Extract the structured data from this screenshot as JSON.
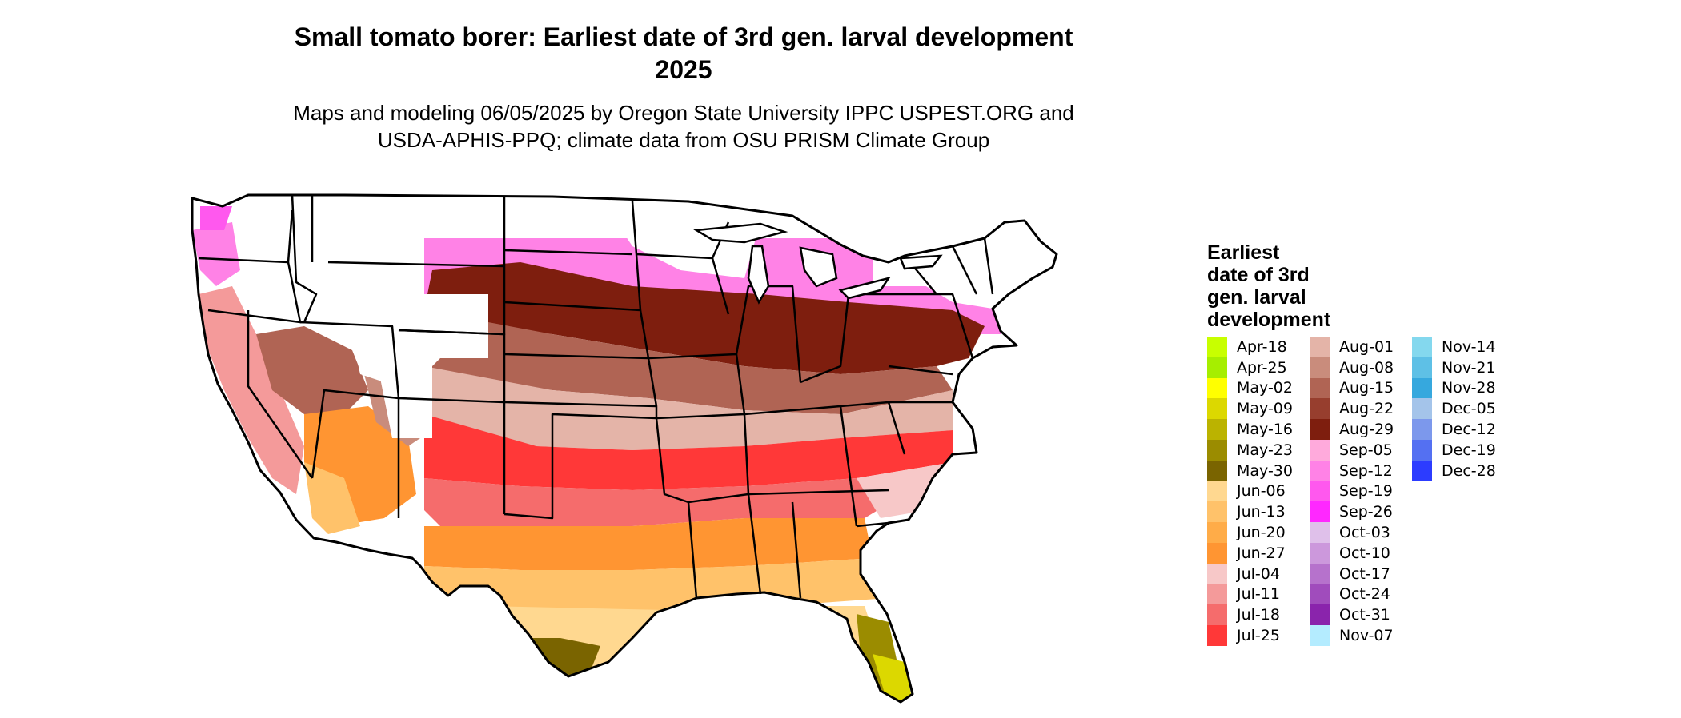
{
  "title_line1": "Small tomato borer: Earliest date of 3rd gen. larval development",
  "title_line2": "2025",
  "subtitle_line1": "Maps and modeling 06/05/2025 by Oregon State University IPPC USPEST.ORG and",
  "subtitle_line2": "USDA-APHIS-PPQ; climate data from OSU PRISM Climate Group",
  "legend": {
    "title_lines": [
      "Earliest",
      "date of 3rd",
      "gen. larval",
      "development"
    ],
    "columns": [
      [
        {
          "label": "Apr-18",
          "color": "#c8ff00"
        },
        {
          "label": "Apr-25",
          "color": "#a6ee00"
        },
        {
          "label": "May-02",
          "color": "#ffff00"
        },
        {
          "label": "May-09",
          "color": "#dcd800"
        },
        {
          "label": "May-16",
          "color": "#bbb300"
        },
        {
          "label": "May-23",
          "color": "#9b8c00"
        },
        {
          "label": "May-30",
          "color": "#7a6400"
        },
        {
          "label": "Jun-06",
          "color": "#ffd890"
        },
        {
          "label": "Jun-13",
          "color": "#ffc26a"
        },
        {
          "label": "Jun-20",
          "color": "#ffac48"
        },
        {
          "label": "Jun-27",
          "color": "#ff9532"
        },
        {
          "label": "Jul-04",
          "color": "#f7c8c8"
        },
        {
          "label": "Jul-11",
          "color": "#f49a9a"
        },
        {
          "label": "Jul-18",
          "color": "#f56c6c"
        },
        {
          "label": "Jul-25",
          "color": "#ff3838"
        }
      ],
      [
        {
          "label": "Aug-01",
          "color": "#e4b4a8"
        },
        {
          "label": "Aug-08",
          "color": "#c98c7c"
        },
        {
          "label": "Aug-15",
          "color": "#b06454"
        },
        {
          "label": "Aug-22",
          "color": "#973e2e"
        },
        {
          "label": "Aug-29",
          "color": "#7e1e0e"
        },
        {
          "label": "Sep-05",
          "color": "#ffaadc"
        },
        {
          "label": "Sep-12",
          "color": "#ff82e6"
        },
        {
          "label": "Sep-19",
          "color": "#ff58ee"
        },
        {
          "label": "Sep-26",
          "color": "#ff28ff"
        },
        {
          "label": "Oct-03",
          "color": "#dfc0ea"
        },
        {
          "label": "Oct-10",
          "color": "#cc98dc"
        },
        {
          "label": "Oct-17",
          "color": "#b672cc"
        },
        {
          "label": "Oct-24",
          "color": "#a04cbc"
        },
        {
          "label": "Oct-31",
          "color": "#8a24ac"
        },
        {
          "label": "Nov-07",
          "color": "#b4ecff"
        }
      ],
      [
        {
          "label": "Nov-14",
          "color": "#84d8ee"
        },
        {
          "label": "Nov-21",
          "color": "#5ec0e6"
        },
        {
          "label": "Nov-28",
          "color": "#36a8de"
        },
        {
          "label": "Dec-05",
          "color": "#a4c4ea"
        },
        {
          "label": "Dec-12",
          "color": "#7c98ec"
        },
        {
          "label": "Dec-19",
          "color": "#5470f2"
        },
        {
          "label": "Dec-28",
          "color": "#2c3cff"
        }
      ]
    ]
  }
}
